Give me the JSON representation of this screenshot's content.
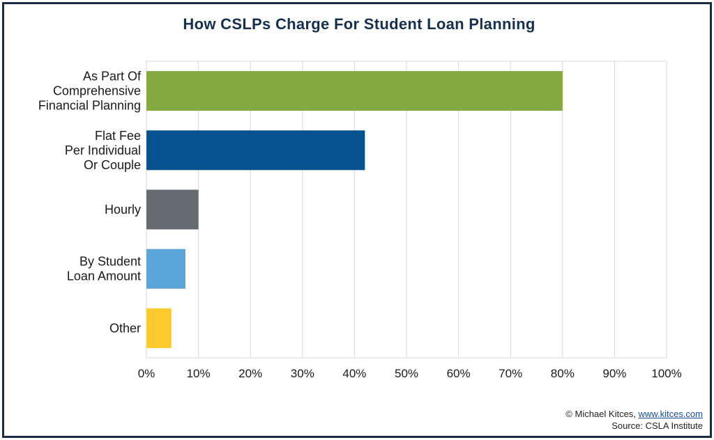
{
  "chart_data": {
    "type": "bar",
    "orientation": "horizontal",
    "title": "How CSLPs Charge For Student Loan Planning",
    "categories": [
      [
        "As Part Of",
        "Comprehensive",
        "Financial Planning"
      ],
      [
        "Flat Fee",
        "Per Individual",
        "Or Couple"
      ],
      [
        "Hourly"
      ],
      [
        "By Student",
        "Loan Amount"
      ],
      [
        "Other"
      ]
    ],
    "values": [
      80,
      42,
      10,
      7.5,
      4.8
    ],
    "colors": [
      "#84a940",
      "#06528f",
      "#656b70",
      "#5aa5da",
      "#fecb2e"
    ],
    "xlim": [
      0,
      100
    ],
    "xticks": [
      "0%",
      "10%",
      "20%",
      "30%",
      "40%",
      "50%",
      "60%",
      "70%",
      "80%",
      "90%",
      "100%"
    ],
    "grid": true,
    "legend": "none"
  },
  "credit": {
    "copyright": "© Michael Kitces, ",
    "link": "www.kitces.com",
    "source": "Source: CSLA Institute"
  }
}
